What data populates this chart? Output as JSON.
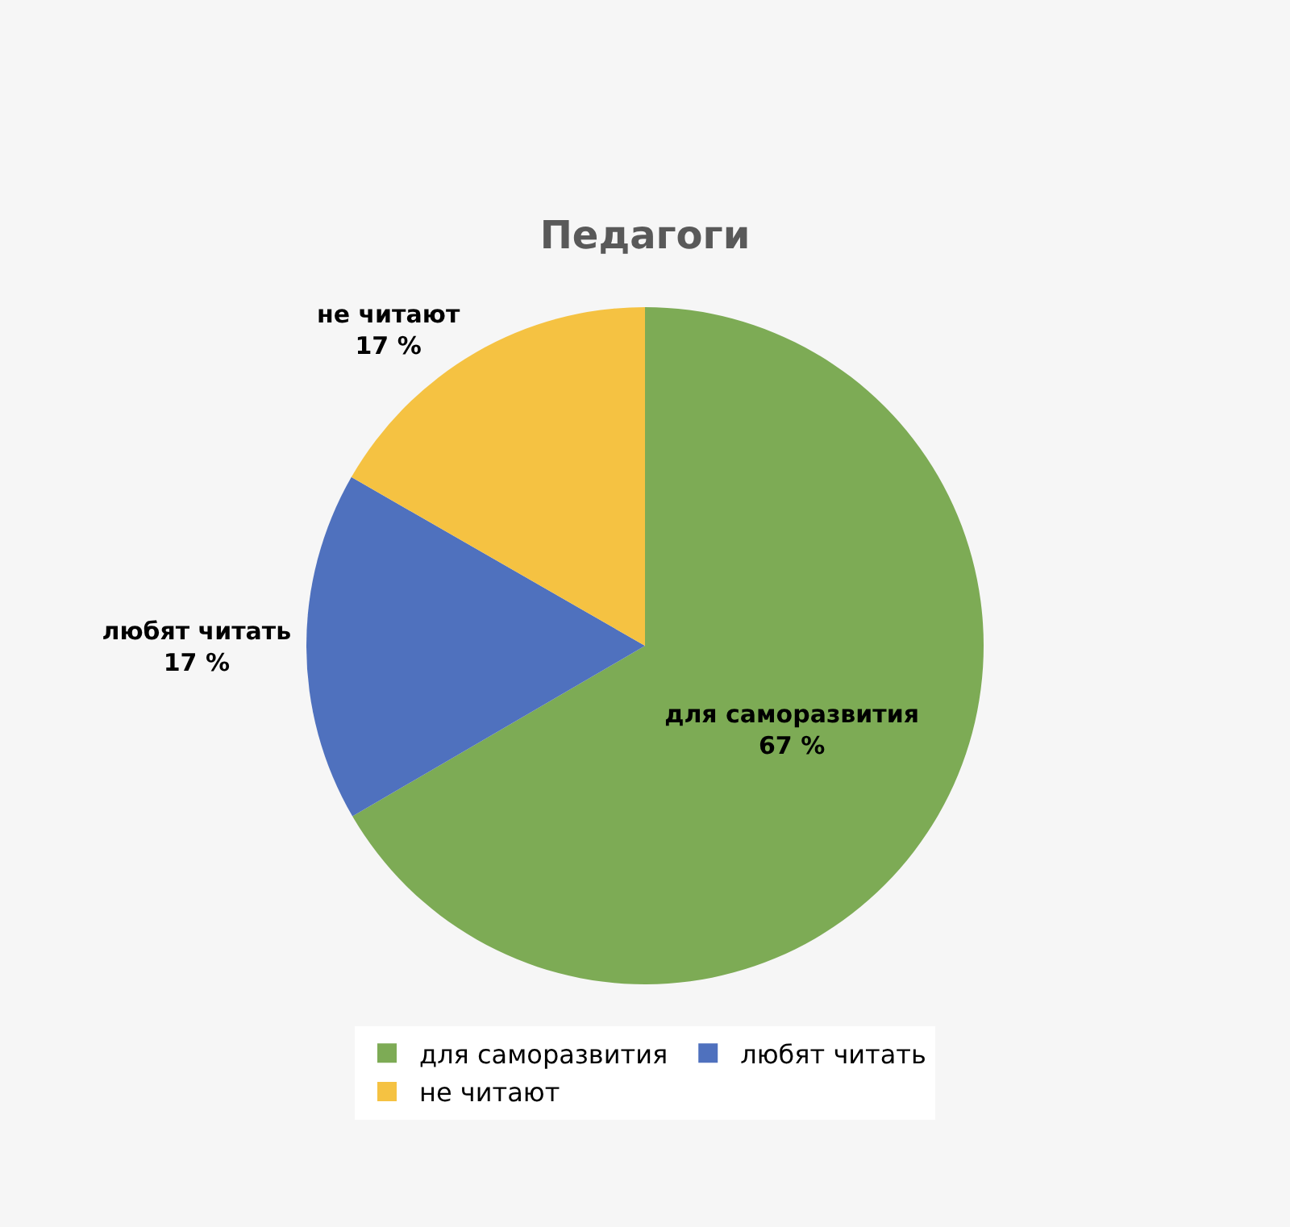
{
  "chart_data": {
    "type": "pie",
    "title": "Педагоги",
    "categories": [
      "для саморазвития",
      "любят читать",
      "не читают"
    ],
    "values": [
      66.6,
      16.7,
      16.7
    ],
    "value_labels": [
      "67 %",
      "17 %",
      "17 %"
    ],
    "colors": [
      "#7dab55",
      "#4f71be",
      "#f5c242"
    ],
    "legend": "bottom"
  }
}
